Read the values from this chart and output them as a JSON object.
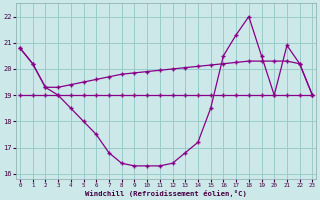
{
  "xlabel": "Windchill (Refroidissement éolien,°C)",
  "hours": [
    0,
    1,
    2,
    3,
    4,
    5,
    6,
    7,
    8,
    9,
    10,
    11,
    12,
    13,
    14,
    15,
    16,
    17,
    18,
    19,
    20,
    21,
    22,
    23
  ],
  "windchill": [
    20.8,
    20.2,
    19.3,
    19.0,
    18.5,
    18.0,
    17.5,
    16.8,
    16.4,
    16.3,
    16.3,
    16.3,
    16.4,
    16.8,
    17.2,
    18.5,
    20.5,
    21.3,
    22.0,
    20.5,
    19.0,
    20.9,
    20.2,
    19.0
  ],
  "flat_line": [
    19.0,
    19.0,
    19.0,
    19.0,
    19.0,
    19.0,
    19.0,
    19.0,
    19.0,
    19.0,
    19.0,
    19.0,
    19.0,
    19.0,
    19.0,
    19.0,
    19.0,
    19.0,
    19.0,
    19.0,
    19.0,
    19.0,
    19.0,
    19.0
  ],
  "temp_line": [
    20.8,
    20.2,
    19.3,
    19.3,
    19.4,
    19.5,
    19.6,
    19.7,
    19.8,
    19.85,
    19.9,
    19.95,
    20.0,
    20.05,
    20.1,
    20.15,
    20.2,
    20.25,
    20.3,
    20.3,
    20.3,
    20.3,
    20.2,
    19.0
  ],
  "line_color": "#880088",
  "bg_color": "#cce8e8",
  "grid_color": "#99cccc",
  "ylim": [
    15.8,
    22.5
  ],
  "yticks": [
    16,
    17,
    18,
    19,
    20,
    21,
    22
  ],
  "xticks": [
    0,
    1,
    2,
    3,
    4,
    5,
    6,
    7,
    8,
    9,
    10,
    11,
    12,
    13,
    14,
    15,
    16,
    17,
    18,
    19,
    20,
    21,
    22,
    23
  ]
}
